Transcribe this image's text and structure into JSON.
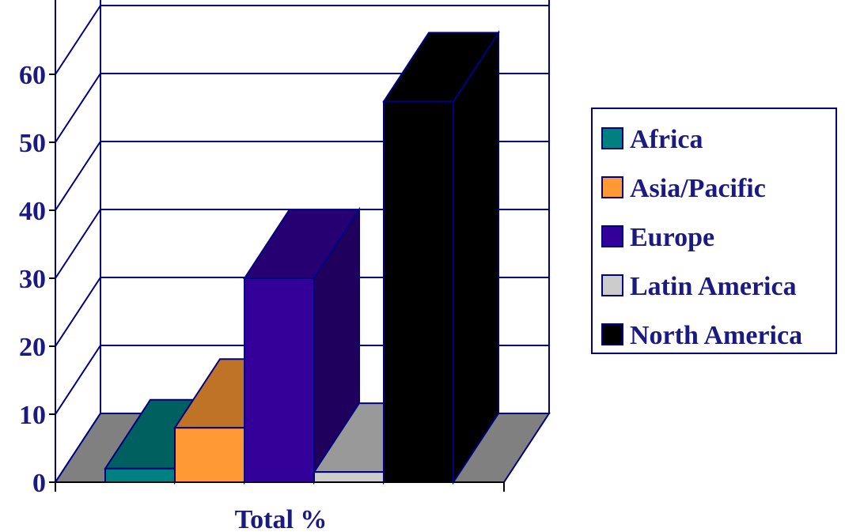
{
  "chart_data": {
    "type": "bar",
    "xlabel": "Total %",
    "ylabel": "",
    "ylim": [
      0,
      60
    ],
    "yticks": [
      0,
      10,
      20,
      30,
      40,
      50,
      60
    ],
    "grid": true,
    "legend_position": "right",
    "categories": [
      "Total %"
    ],
    "series": [
      {
        "name": "Africa",
        "values": [
          2
        ],
        "color": "#008080"
      },
      {
        "name": "Asia/Pacific",
        "values": [
          8
        ],
        "color": "#FF9933"
      },
      {
        "name": "Europe",
        "values": [
          30
        ],
        "color": "#330099"
      },
      {
        "name": "Latin America",
        "values": [
          1.5
        ],
        "color": "#CCCCCC"
      },
      {
        "name": "North America",
        "values": [
          56
        ],
        "color": "#000000"
      }
    ]
  }
}
